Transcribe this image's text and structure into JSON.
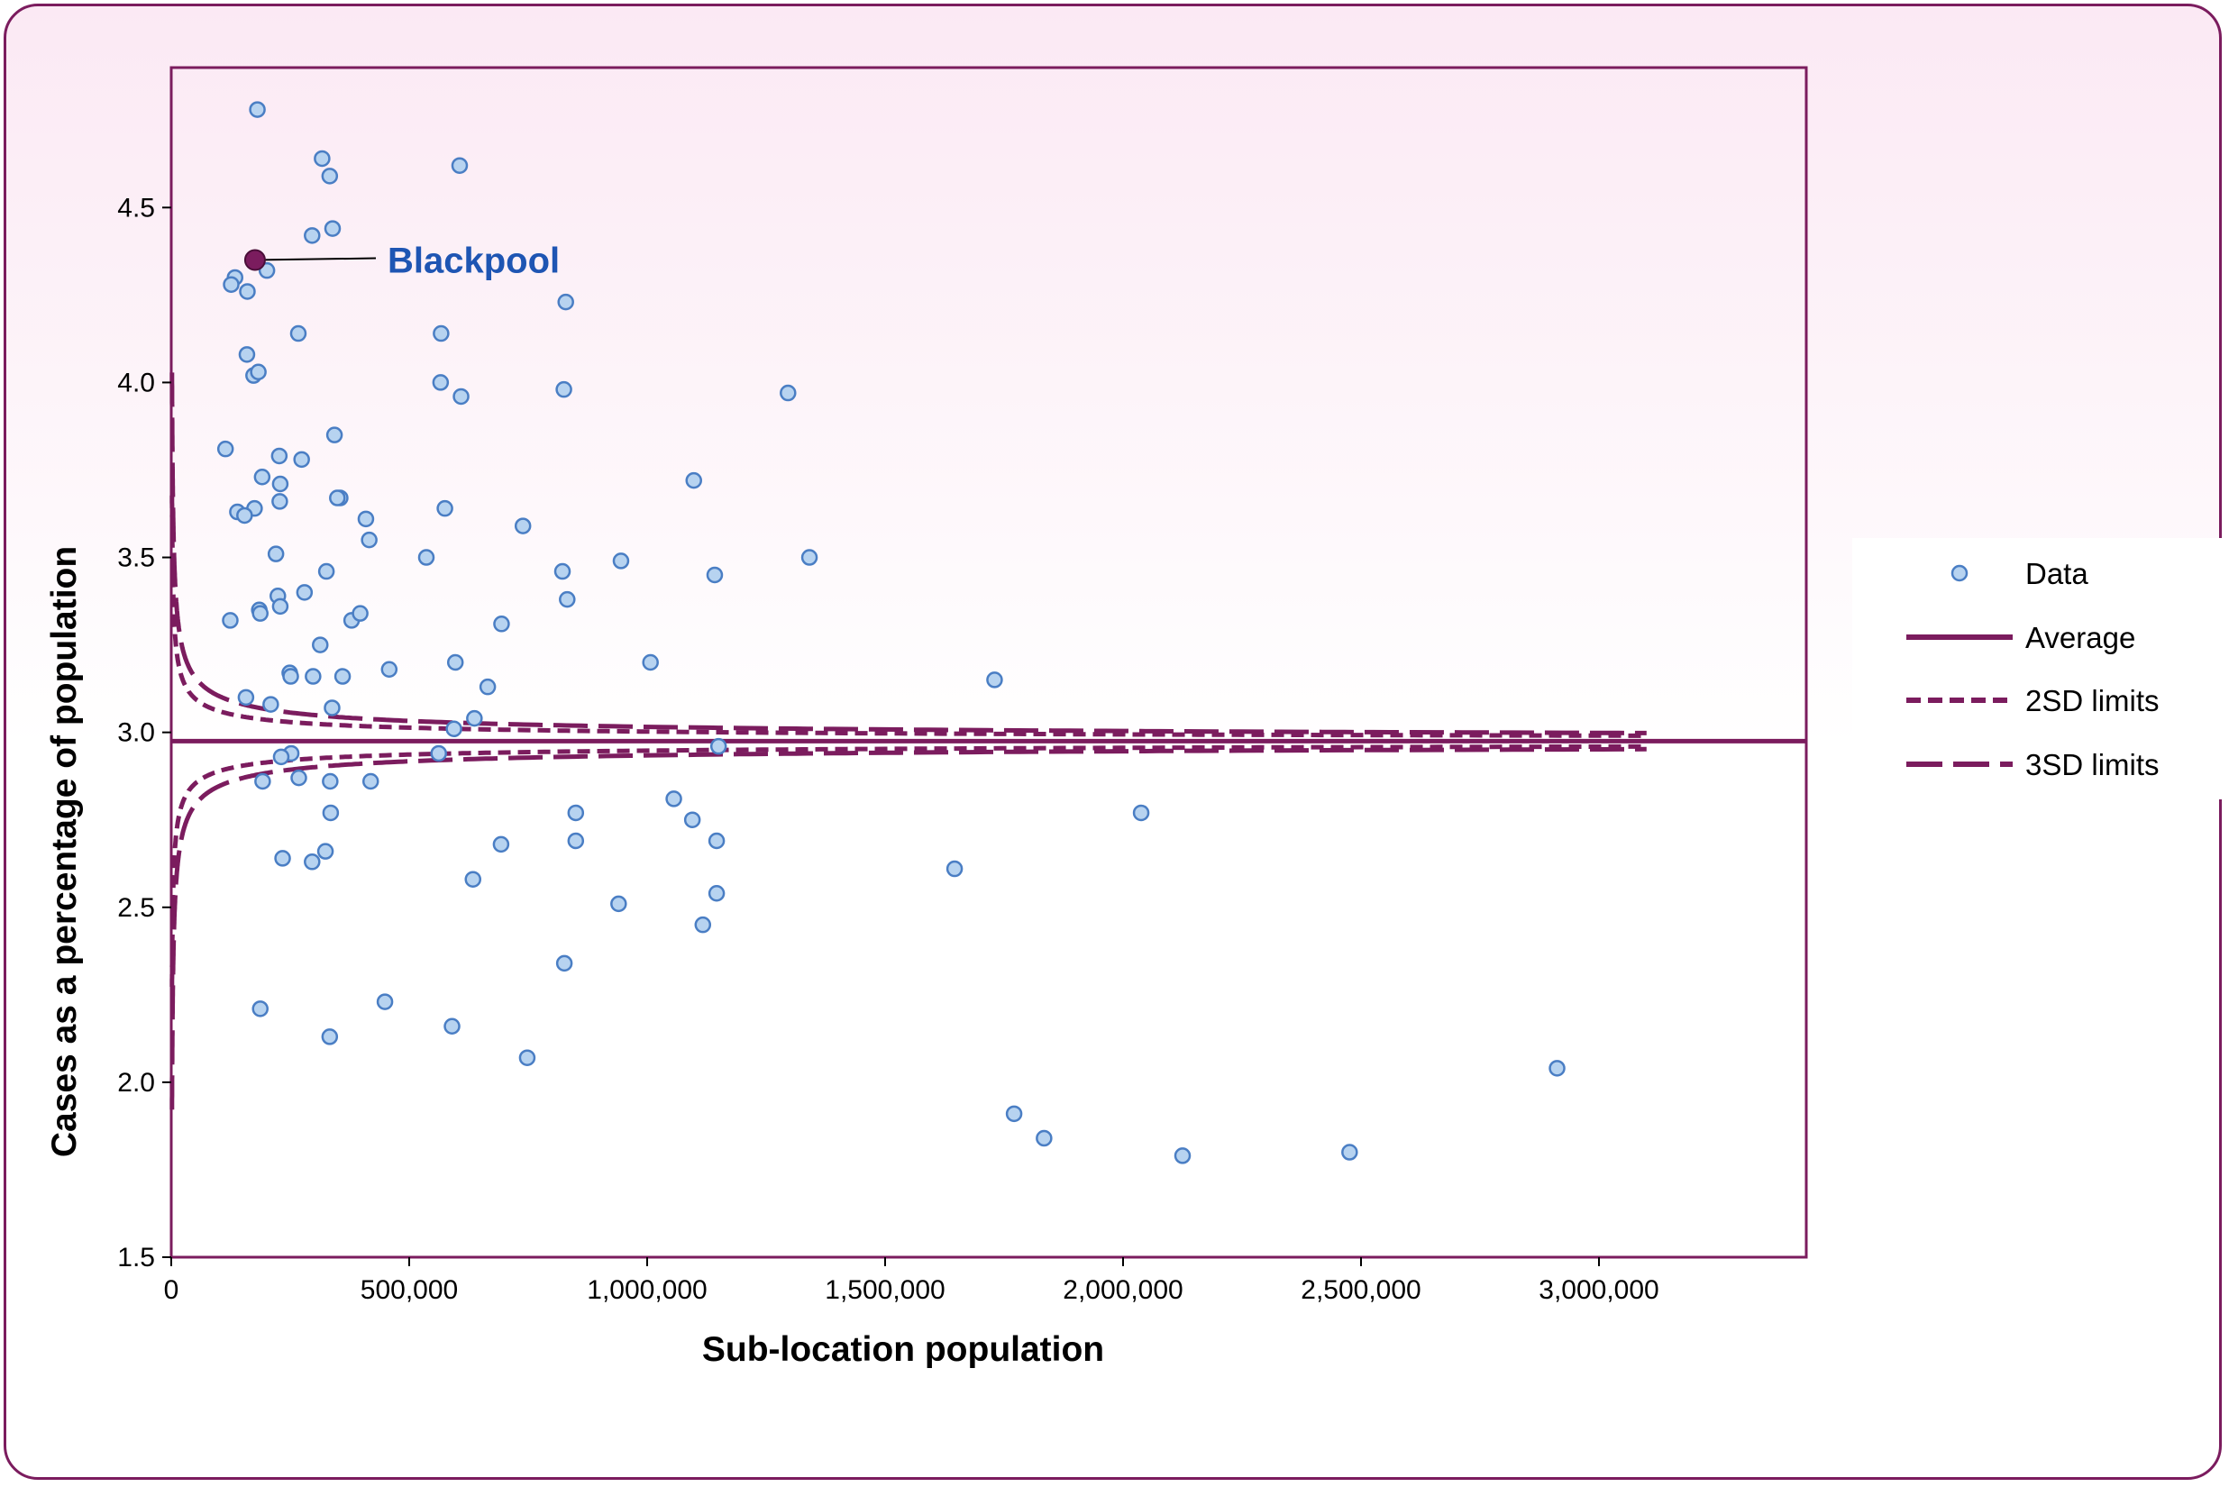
{
  "chart_data": {
    "type": "scatter",
    "title": "",
    "xlabel": "Sub-location population",
    "ylabel": "Cases as a percentage of population",
    "xlim": [
      0,
      3100000
    ],
    "ylim": [
      1.5,
      4.9
    ],
    "xticks": [
      0,
      500000,
      1000000,
      1500000,
      2000000,
      2500000,
      3000000
    ],
    "xtick_labels": [
      "0",
      "500,000",
      "1,000,000",
      "1,500,000",
      "2,000,000",
      "2,500,000",
      "3,000,000"
    ],
    "yticks": [
      1.5,
      2.0,
      2.5,
      3.0,
      3.5,
      4.0,
      4.5
    ],
    "ytick_labels": [
      "1.5",
      "2.0",
      "2.5",
      "3.0",
      "3.5",
      "4.0",
      "4.5"
    ],
    "grid": false,
    "legend_position": "right",
    "legend": [
      "Data",
      "Average",
      "2SD limits",
      "3SD limits"
    ],
    "colors": {
      "points": "#b7d3f0",
      "point_edge": "#4a7ec4",
      "lines": "#7b1c5e",
      "highlight": "#7b1c5e",
      "annotation": "#1e55b3",
      "frame": "#7b1c5e"
    },
    "average": 2.975,
    "funnel_k": 13.6,
    "highlight": {
      "label": "Blackpool",
      "x": 176000,
      "y": 4.35
    },
    "series": [
      {
        "name": "Data",
        "points": [
          [
            181000,
            4.78
          ],
          [
            317000,
            4.64
          ],
          [
            333000,
            4.59
          ],
          [
            606000,
            4.62
          ],
          [
            339000,
            4.44
          ],
          [
            296000,
            4.42
          ],
          [
            134000,
            4.3
          ],
          [
            201000,
            4.32
          ],
          [
            126000,
            4.28
          ],
          [
            160000,
            4.26
          ],
          [
            829000,
            4.23
          ],
          [
            267000,
            4.14
          ],
          [
            567000,
            4.14
          ],
          [
            159000,
            4.08
          ],
          [
            173000,
            4.02
          ],
          [
            183000,
            4.03
          ],
          [
            566000,
            4.0
          ],
          [
            825000,
            3.98
          ],
          [
            609000,
            3.96
          ],
          [
            1296000,
            3.97
          ],
          [
            343000,
            3.85
          ],
          [
            114000,
            3.81
          ],
          [
            227000,
            3.79
          ],
          [
            274000,
            3.78
          ],
          [
            191000,
            3.73
          ],
          [
            229000,
            3.71
          ],
          [
            1098000,
            3.72
          ],
          [
            355000,
            3.67
          ],
          [
            349000,
            3.67
          ],
          [
            228000,
            3.66
          ],
          [
            139000,
            3.63
          ],
          [
            175000,
            3.64
          ],
          [
            154000,
            3.62
          ],
          [
            575000,
            3.64
          ],
          [
            409000,
            3.61
          ],
          [
            739000,
            3.59
          ],
          [
            416000,
            3.55
          ],
          [
            220000,
            3.51
          ],
          [
            536000,
            3.5
          ],
          [
            945000,
            3.49
          ],
          [
            1341000,
            3.5
          ],
          [
            326000,
            3.46
          ],
          [
            822000,
            3.46
          ],
          [
            1142000,
            3.45
          ],
          [
            224000,
            3.39
          ],
          [
            280000,
            3.4
          ],
          [
            832000,
            3.38
          ],
          [
            229000,
            3.36
          ],
          [
            185000,
            3.35
          ],
          [
            187000,
            3.34
          ],
          [
            124000,
            3.32
          ],
          [
            379000,
            3.32
          ],
          [
            397000,
            3.34
          ],
          [
            694000,
            3.31
          ],
          [
            313000,
            3.25
          ],
          [
            597000,
            3.2
          ],
          [
            1007000,
            3.2
          ],
          [
            458000,
            3.18
          ],
          [
            249000,
            3.17
          ],
          [
            251000,
            3.16
          ],
          [
            360000,
            3.16
          ],
          [
            298000,
            3.16
          ],
          [
            1730000,
            3.15
          ],
          [
            665000,
            3.13
          ],
          [
            157000,
            3.1
          ],
          [
            209000,
            3.08
          ],
          [
            338000,
            3.07
          ],
          [
            637000,
            3.04
          ],
          [
            594000,
            3.01
          ],
          [
            562000,
            2.94
          ],
          [
            252000,
            2.94
          ],
          [
            231000,
            2.93
          ],
          [
            1150000,
            2.96
          ],
          [
            268000,
            2.87
          ],
          [
            334000,
            2.86
          ],
          [
            419000,
            2.86
          ],
          [
            192000,
            2.86
          ],
          [
            1056000,
            2.81
          ],
          [
            335000,
            2.77
          ],
          [
            850000,
            2.77
          ],
          [
            1095000,
            2.75
          ],
          [
            2038000,
            2.77
          ],
          [
            850000,
            2.69
          ],
          [
            693000,
            2.68
          ],
          [
            1146000,
            2.69
          ],
          [
            324000,
            2.66
          ],
          [
            234000,
            2.64
          ],
          [
            296000,
            2.63
          ],
          [
            1646000,
            2.61
          ],
          [
            634000,
            2.58
          ],
          [
            1146000,
            2.54
          ],
          [
            940000,
            2.51
          ],
          [
            1117000,
            2.45
          ],
          [
            826000,
            2.34
          ],
          [
            449000,
            2.23
          ],
          [
            187000,
            2.21
          ],
          [
            590000,
            2.16
          ],
          [
            333000,
            2.13
          ],
          [
            748000,
            2.07
          ],
          [
            2912000,
            2.04
          ],
          [
            1771000,
            1.91
          ],
          [
            1834000,
            1.84
          ],
          [
            2476000,
            1.8
          ],
          [
            2125000,
            1.79
          ]
        ]
      }
    ]
  }
}
